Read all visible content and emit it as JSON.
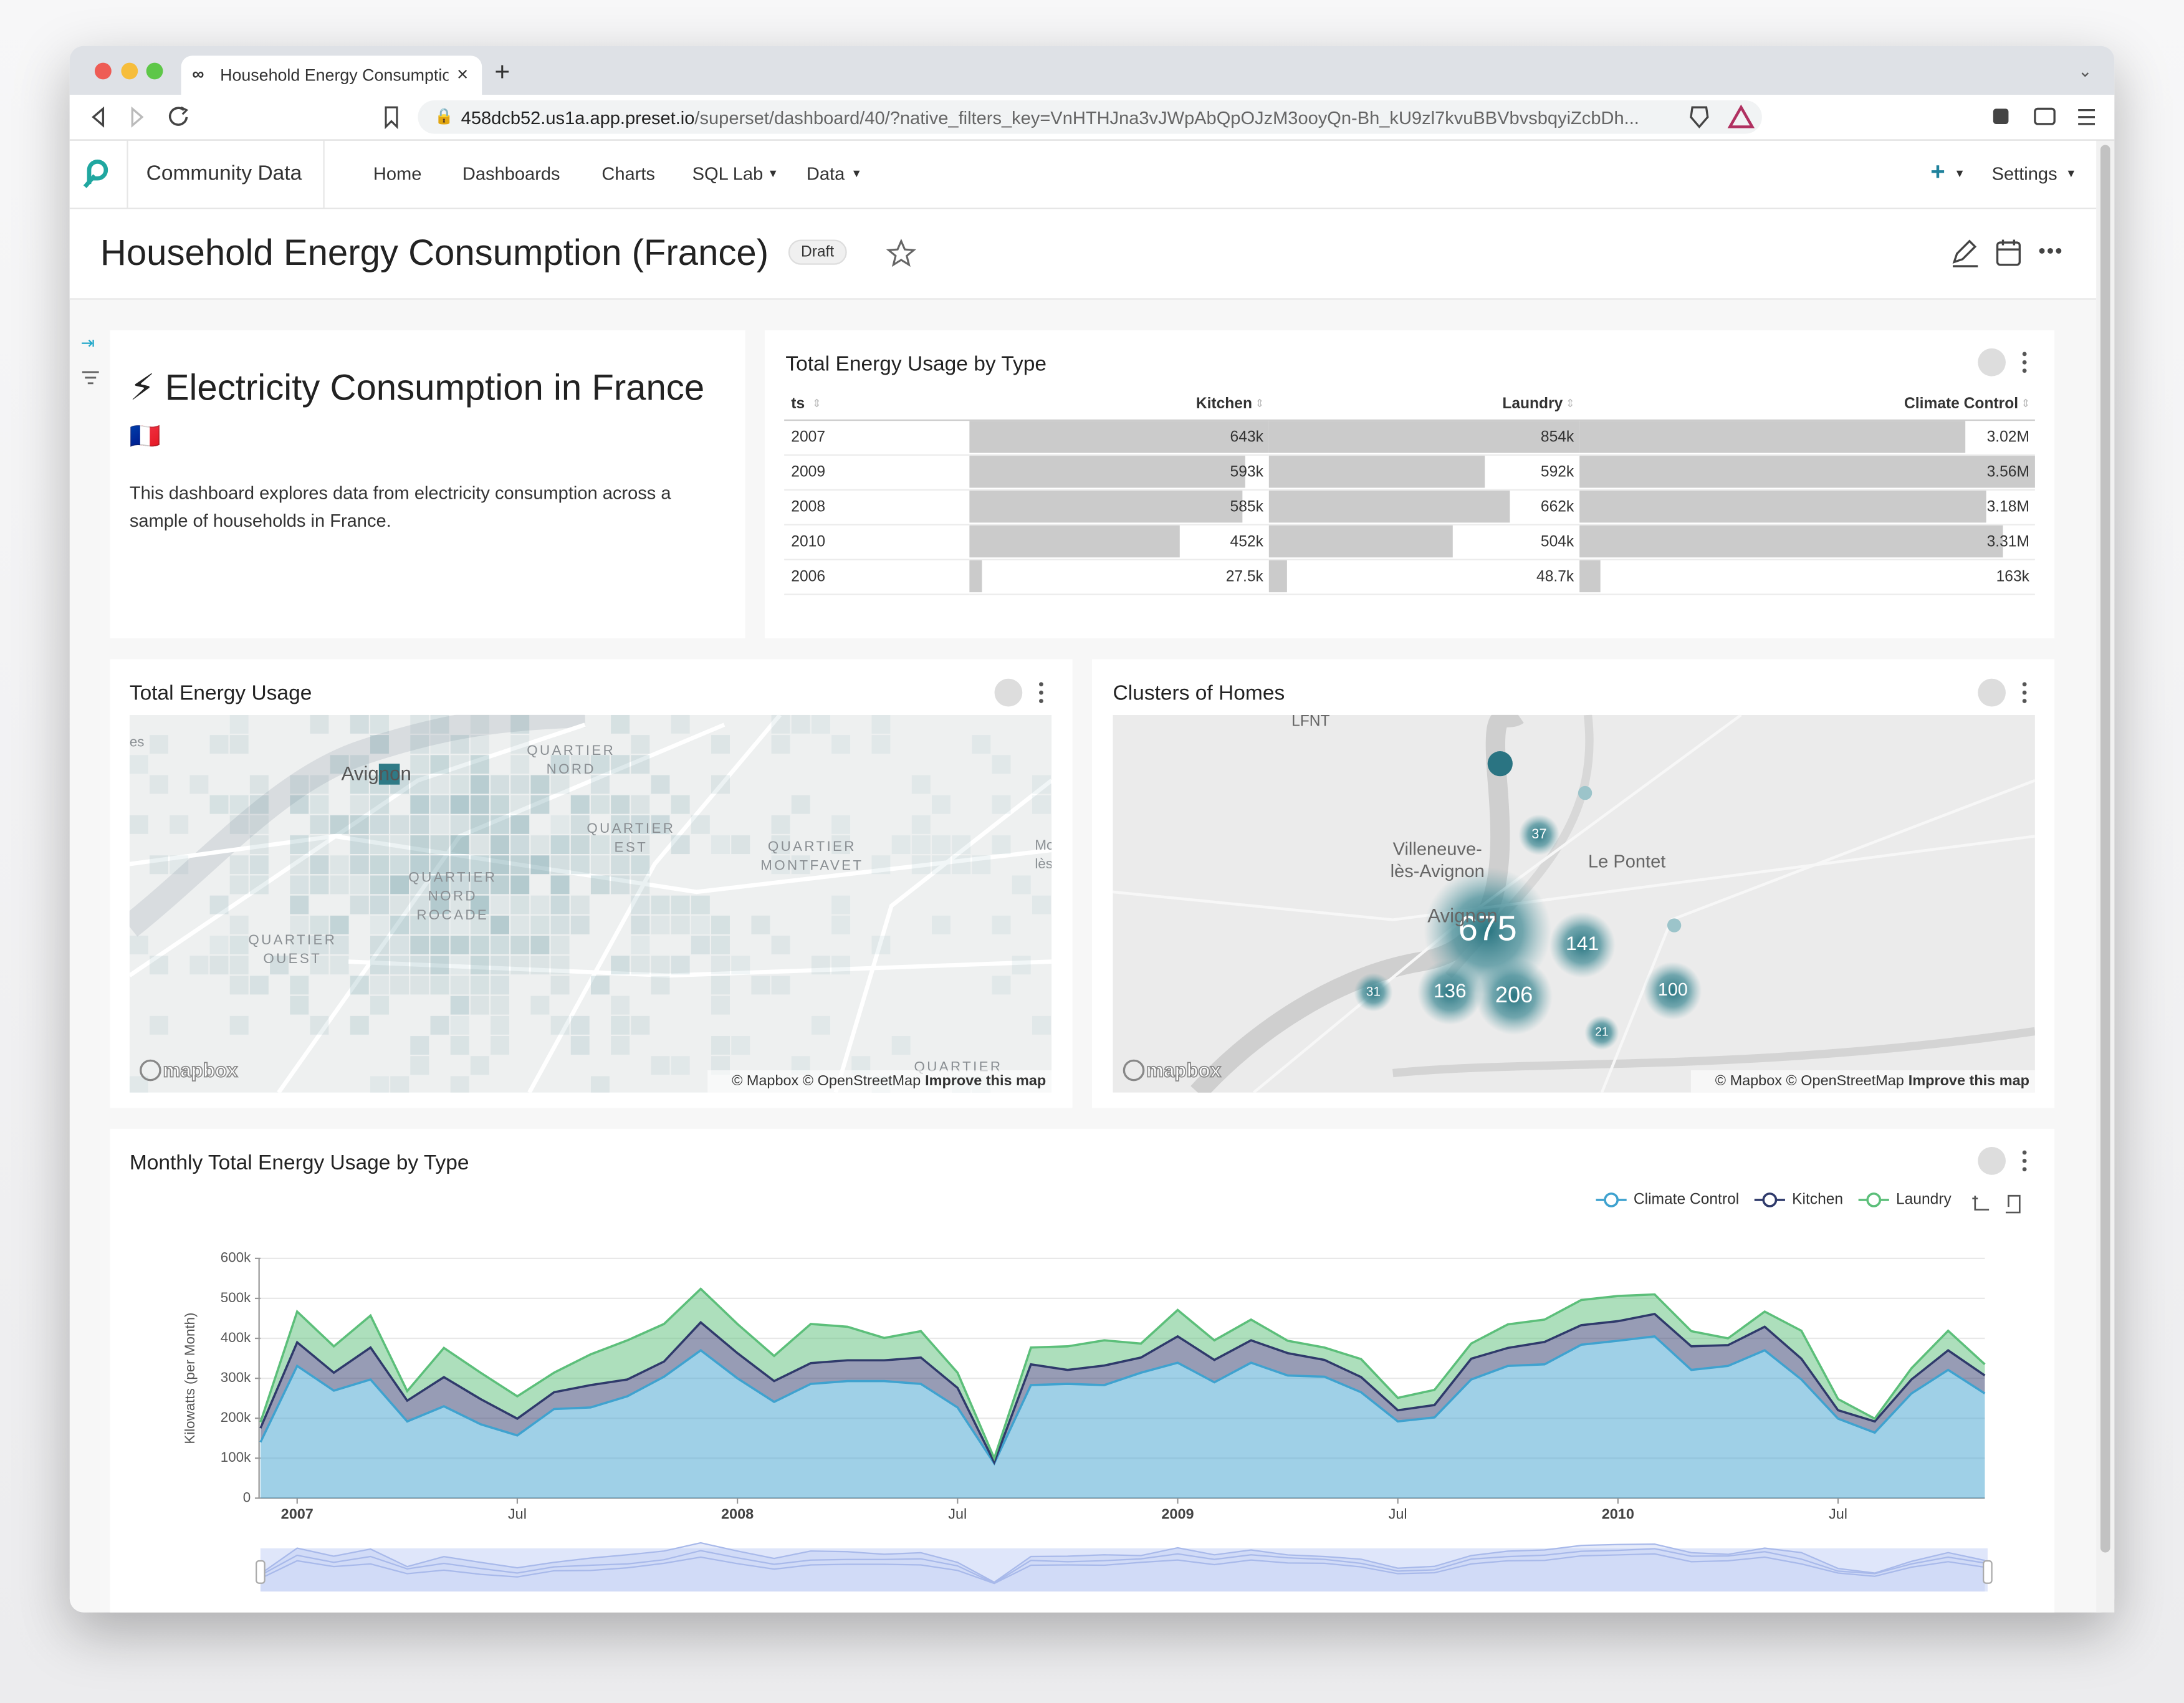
{
  "browser": {
    "tab_title": "Household Energy Consumptio",
    "url_host": "458dcb52.us1a.app.preset.io",
    "url_path": "/superset/dashboard/40/?native_filters_key=VnHTHJna3vJWpAbQpOJzM3ooyQn-Bh_kU9zl7kvuBBVbvsbqyiZcbDh..."
  },
  "nav": {
    "brand": "Community Data",
    "items": [
      "Home",
      "Dashboards",
      "Charts",
      "SQL Lab",
      "Data"
    ],
    "settings": "Settings"
  },
  "dashboard": {
    "title": "Household Energy Consumption (France)",
    "badge": "Draft"
  },
  "intro": {
    "heading": "⚡ Electricity Consumption in France",
    "flag": "🇫🇷",
    "text": "This dashboard explores data from electricity consumption across a sample of households in France."
  },
  "table": {
    "title": "Total Energy Usage by Type",
    "columns": [
      "ts",
      "Kitchen",
      "Laundry",
      "Climate Control"
    ],
    "rows": [
      "2007",
      "2009",
      "2008",
      "2010",
      "2006"
    ],
    "values": [
      [
        643000,
        854000,
        3020000
      ],
      [
        593000,
        592000,
        3560000
      ],
      [
        585000,
        662000,
        3180000
      ],
      [
        452000,
        504000,
        3310000
      ],
      [
        27500,
        48700,
        163000
      ]
    ],
    "value_labels": [
      [
        "643k",
        "854k",
        "3.02M"
      ],
      [
        "593k",
        "592k",
        "3.56M"
      ],
      [
        "585k",
        "662k",
        "3.18M"
      ],
      [
        "452k",
        "504k",
        "3.31M"
      ],
      [
        "27.5k",
        "48.7k",
        "163k"
      ]
    ]
  },
  "heatmap": {
    "title": "Total Energy Usage",
    "places": [
      [
        "es"
      ],
      [
        "Avignon"
      ],
      [
        "QUARTIER",
        "NORD"
      ],
      [
        "QUARTIER",
        "EST"
      ],
      [
        "QUARTIER",
        "MONTFAVET"
      ],
      [
        "QUARTIER",
        "NORD",
        "ROCADE"
      ],
      [
        "QUARTIER",
        "OUEST"
      ],
      [
        "Mo",
        "lès-"
      ],
      [
        "QUARTIER"
      ]
    ]
  },
  "clusters": {
    "title": "Clusters of Homes",
    "places": [
      [
        "LFNT"
      ],
      [
        "Villeneuve-",
        "lès-Avignon"
      ],
      [
        "Le Pontet"
      ],
      [
        "Avignon"
      ]
    ],
    "values": [
      675,
      206,
      141,
      136,
      100,
      37,
      31,
      21
    ]
  },
  "map_footer": {
    "logo": "mapbox",
    "attribution": "© Mapbox © OpenStreetMap",
    "improve": "Improve this map"
  },
  "chart": {
    "type": "area",
    "stacked": true,
    "title": "Monthly Total Energy Usage by Type",
    "y_label": "Kilowatts (per Month)",
    "legend": "top-right",
    "grid": true,
    "x": [
      "2006-12",
      "2007-01",
      "2007-02",
      "2007-03",
      "2007-04",
      "2007-05",
      "2007-06",
      "2007-07",
      "2007-08",
      "2007-09",
      "2007-10",
      "2007-11",
      "2007-12",
      "2008-01",
      "2008-02",
      "2008-03",
      "2008-04",
      "2008-05",
      "2008-06",
      "2008-07",
      "2008-08",
      "2008-09",
      "2008-10",
      "2008-11",
      "2008-12",
      "2009-01",
      "2009-02",
      "2009-03",
      "2009-04",
      "2009-05",
      "2009-06",
      "2009-07",
      "2009-08",
      "2009-09",
      "2009-10",
      "2009-11",
      "2009-12",
      "2010-01",
      "2010-02",
      "2010-03",
      "2010-04",
      "2010-05",
      "2010-06",
      "2010-07",
      "2010-08",
      "2010-09",
      "2010-10",
      "2010-11"
    ],
    "xlim": [
      "2006-12",
      "2010-11"
    ],
    "xticks": [
      {
        "value": "2007-01",
        "label": "2007"
      },
      {
        "value": "2007-07",
        "label": "Jul"
      },
      {
        "value": "2008-01",
        "label": "2008"
      },
      {
        "value": "2008-07",
        "label": "Jul"
      },
      {
        "value": "2009-01",
        "label": "2009"
      },
      {
        "value": "2009-07",
        "label": "Jul"
      },
      {
        "value": "2010-01",
        "label": "2010"
      },
      {
        "value": "2010-07",
        "label": "Jul"
      }
    ],
    "ylim": [
      0,
      600000
    ],
    "yticks": [
      0,
      {
        "value": 100000,
        "label": "100k"
      },
      {
        "value": 200000,
        "label": "200k"
      },
      {
        "value": 300000,
        "label": "300k"
      },
      {
        "value": 400000,
        "label": "400k"
      },
      {
        "value": 500000,
        "label": "500k"
      },
      {
        "value": 600000,
        "label": "600k"
      }
    ],
    "series": [
      {
        "name": "Climate Control",
        "color": "#3fa2cf",
        "values": [
          140000,
          331000,
          269000,
          297000,
          192000,
          230000,
          185000,
          157000,
          223000,
          227000,
          255000,
          304000,
          370000,
          300000,
          241000,
          286000,
          293000,
          293000,
          286000,
          227000,
          87000,
          283000,
          286000,
          283000,
          314000,
          339000,
          290000,
          339000,
          307000,
          304000,
          265000,
          192000,
          202000,
          297000,
          331000,
          335000,
          384000,
          394000,
          405000,
          321000,
          331000,
          370000,
          297000,
          199000,
          164000,
          262000,
          321000,
          262000
        ]
      },
      {
        "name": "Kitchen",
        "color": "#2f3a6b",
        "values": [
          35000,
          59000,
          45000,
          80000,
          52000,
          73000,
          63000,
          42000,
          42000,
          56000,
          42000,
          38000,
          70000,
          63000,
          52000,
          52000,
          52000,
          52000,
          66000,
          49000,
          3000,
          52000,
          35000,
          49000,
          38000,
          66000,
          56000,
          56000,
          56000,
          42000,
          38000,
          28000,
          31000,
          52000,
          45000,
          56000,
          49000,
          49000,
          56000,
          59000,
          52000,
          59000,
          52000,
          21000,
          28000,
          35000,
          49000,
          45000
        ]
      },
      {
        "name": "Laundry",
        "color": "#5cbf7a",
        "values": [
          15000,
          77000,
          66000,
          80000,
          24000,
          73000,
          66000,
          56000,
          49000,
          77000,
          98000,
          94000,
          84000,
          73000,
          63000,
          98000,
          84000,
          56000,
          66000,
          38000,
          10000,
          42000,
          59000,
          63000,
          35000,
          66000,
          49000,
          52000,
          31000,
          31000,
          45000,
          31000,
          38000,
          38000,
          59000,
          56000,
          63000,
          63000,
          49000,
          38000,
          17000,
          38000,
          70000,
          28000,
          7000,
          28000,
          49000,
          28000
        ]
      }
    ]
  }
}
